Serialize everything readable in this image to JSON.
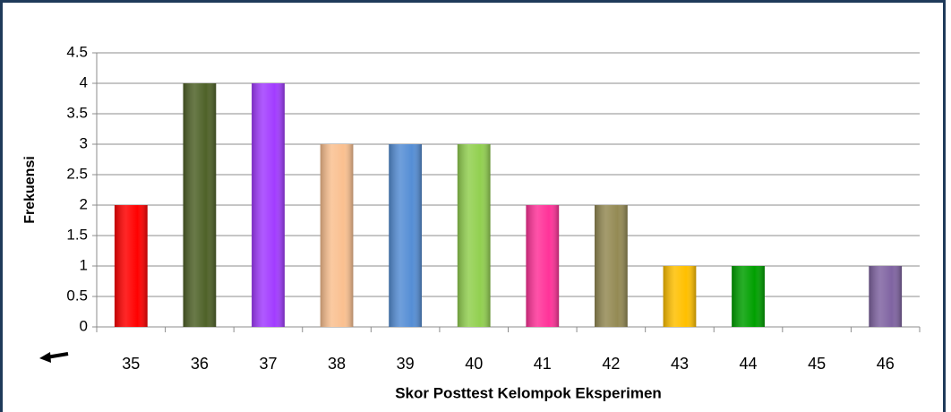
{
  "chart_data": {
    "type": "bar",
    "x_label": "Skor Posttest Kelompok Eksperimen",
    "y_label": "Frekuensi",
    "categories": [
      "35",
      "36",
      "37",
      "38",
      "39",
      "40",
      "41",
      "42",
      "43",
      "44",
      "45",
      "46"
    ],
    "values": [
      2,
      4,
      4,
      3,
      3,
      3,
      2,
      2,
      1,
      1,
      0,
      1
    ],
    "colors": [
      "#ff0000",
      "#4f6228",
      "#a23cff",
      "#fac090",
      "#558ed5",
      "#92d050",
      "#ff3399",
      "#948a54",
      "#ffc000",
      "#00a000",
      "#4bacc6",
      "#8064a2"
    ],
    "ylim": [
      0,
      4.5
    ],
    "yticks": [
      0,
      0.5,
      1,
      1.5,
      2,
      2.5,
      3,
      3.5,
      4,
      4.5
    ],
    "grid": true
  }
}
